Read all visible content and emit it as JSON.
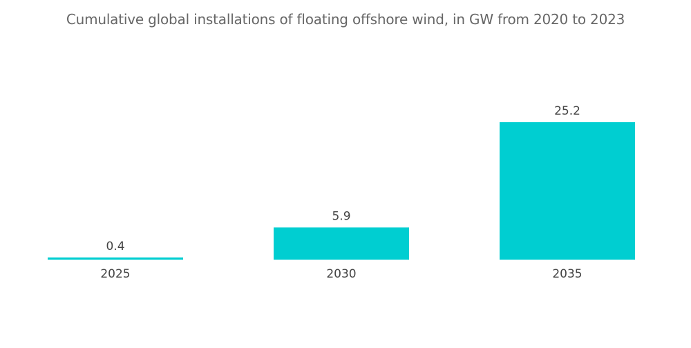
{
  "chart_data": {
    "type": "bar",
    "title": "Cumulative global installations of floating offshore wind, in GW from 2020 to 2023",
    "categories": [
      "2025",
      "2030",
      "2035"
    ],
    "values": [
      0.4,
      5.9,
      25.2
    ],
    "data_labels": [
      "0.4",
      "5.9",
      "25.2"
    ],
    "xlabel": "",
    "ylabel": "",
    "ylim": [
      0,
      25.2
    ],
    "grid": false,
    "legend": "none",
    "bar_color": "#00CED1"
  }
}
